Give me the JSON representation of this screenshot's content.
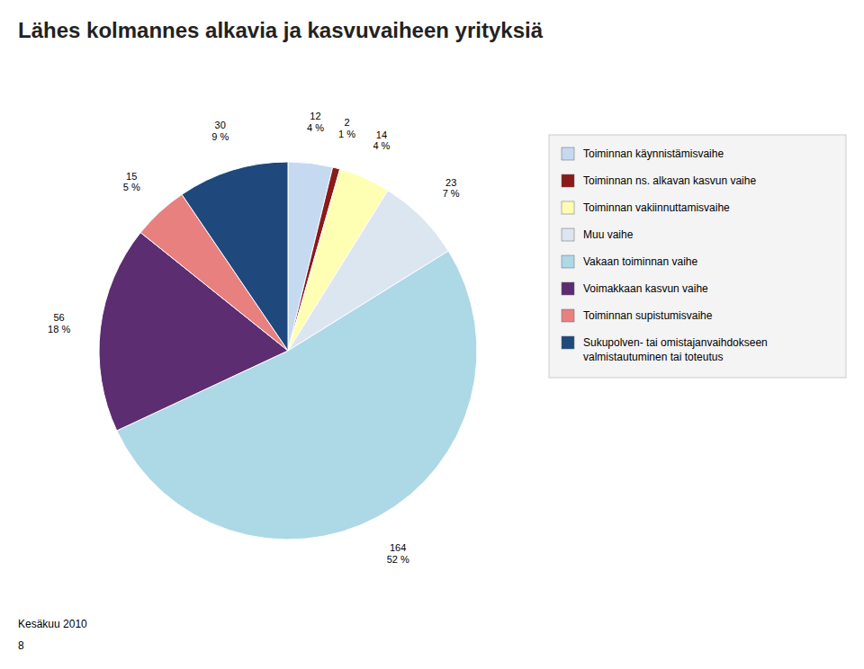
{
  "chart_data": {
    "type": "pie",
    "title": "Lähes kolmannes alkavia ja kasvuvaiheen yrityksiä",
    "categories": [
      "Toiminnan käynnistämisvaihe",
      "Toiminnan ns. alkavan kasvun vaihe",
      "Toiminnan vakiinnuttamisvaihe",
      "Muu vaihe",
      "Vakaan toiminnan vaihe",
      "Voimakkaan kasvun vaihe",
      "Toiminnan supistumisvaihe",
      "Sukupolven- tai omistajanvaihdokseen\nvalmistautuminen tai toteutus"
    ],
    "values": [
      12,
      2,
      14,
      23,
      164,
      56,
      15,
      30
    ],
    "shares": [
      4,
      1,
      4,
      7,
      52,
      18,
      5,
      9
    ],
    "share_labels": [
      "4 %",
      "1 %",
      "4 %",
      "7 %",
      "52 %",
      "18 %",
      "5 %",
      "9 %"
    ],
    "colors": [
      "#c5d9f1",
      "#8b1a1a",
      "#ffffb3",
      "#dce6f1",
      "#add8e6",
      "#5c2d71",
      "#e88080",
      "#1f497d"
    ],
    "data_labels": true,
    "legend": "right",
    "annotations": [
      "Kesäkuu 2010",
      "8"
    ]
  }
}
